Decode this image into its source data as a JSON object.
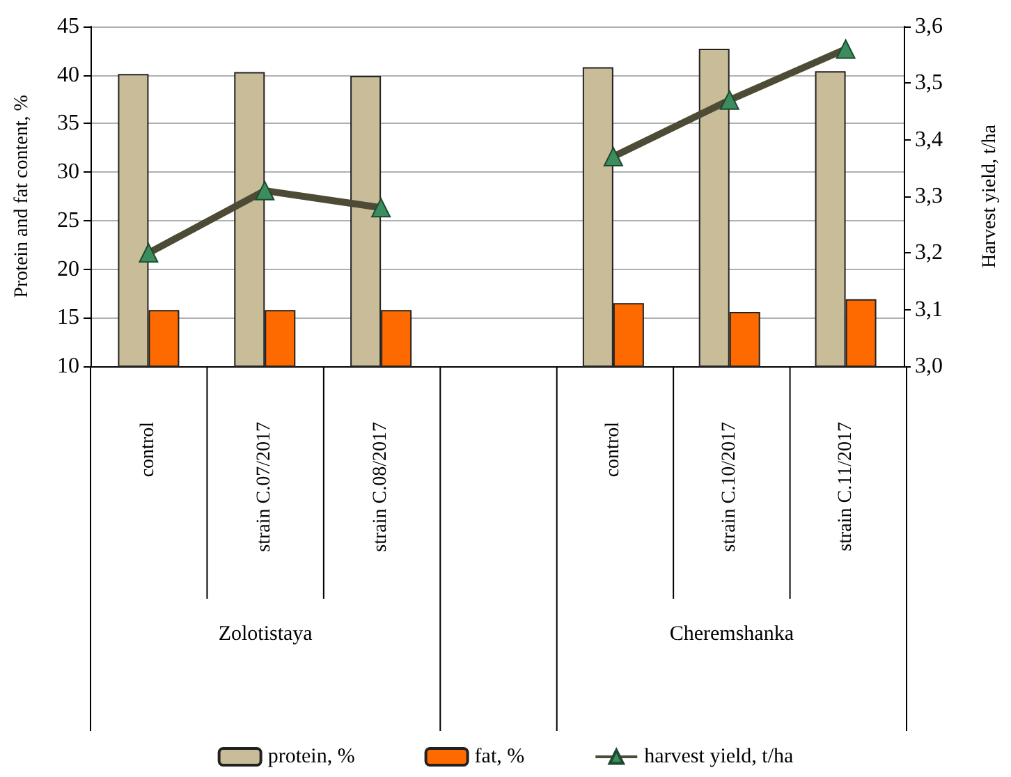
{
  "chart_data": {
    "type": "bar",
    "ylabel": "Protein and fat content, %",
    "y2label": "Harvest yield, t/ha",
    "categories": [
      "control",
      "strain C.07/2017",
      "strain C.08/2017",
      null,
      "control",
      "strain C.10/2017",
      "strain C.11/2017"
    ],
    "series": [
      {
        "name": "protein, %",
        "color": "#c8bd98",
        "values": [
          40.1,
          40.3,
          39.9,
          null,
          40.8,
          42.7,
          40.4
        ]
      },
      {
        "name": "fat, %",
        "color": "#ff6a00",
        "values": [
          15.8,
          15.8,
          15.8,
          null,
          16.5,
          15.6,
          16.9
        ]
      },
      {
        "name": "harvest yield, t/ha",
        "type": "line",
        "axis": "y2",
        "color": "#4d4a35",
        "marker": "triangle",
        "values": [
          3.2,
          3.31,
          3.28,
          null,
          3.37,
          3.47,
          3.56
        ]
      }
    ],
    "ylim": [
      10,
      45
    ],
    "yticks": [
      10,
      15,
      20,
      25,
      30,
      35,
      40,
      45
    ],
    "y2lim": [
      3.0,
      3.6
    ],
    "y2ticks": [
      {
        "value": 3.0,
        "label": "3,0"
      },
      {
        "value": 3.1,
        "label": "3,1"
      },
      {
        "value": 3.2,
        "label": "3,2"
      },
      {
        "value": 3.3,
        "label": "3,3"
      },
      {
        "value": 3.4,
        "label": "3,4"
      },
      {
        "value": 3.5,
        "label": "3,5"
      },
      {
        "value": 3.6,
        "label": "3,6"
      }
    ],
    "grid": "y",
    "legend": "bottom",
    "annotations": [
      "Zolotistaya",
      "Cheremshanka"
    ]
  }
}
